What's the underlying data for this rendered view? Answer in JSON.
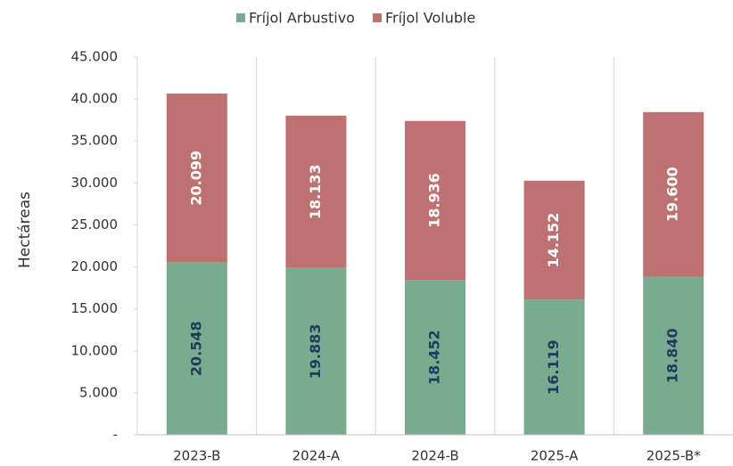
{
  "chart_data": {
    "type": "stacked_bar",
    "categories": [
      "2023-B",
      "2024-A",
      "2024-B",
      "2025-A",
      "2025-B*"
    ],
    "series": [
      {
        "name": "Fríjol Arbustivo",
        "color": "#7aab8f",
        "label_color": "#1f3c5e",
        "values": [
          20548,
          19883,
          18452,
          16119,
          18840
        ],
        "value_labels": [
          "20.548",
          "19.883",
          "18.452",
          "16.119",
          "18.840"
        ]
      },
      {
        "name": "Fríjol Voluble",
        "color": "#be7171",
        "label_color": "#ffffff",
        "values": [
          20099,
          18133,
          18936,
          14152,
          19600
        ],
        "value_labels": [
          "20.099",
          "18.133",
          "18.936",
          "14.152",
          "19.600"
        ]
      }
    ],
    "ylabel": "Hectáreas",
    "ylim": [
      0,
      45000
    ],
    "yticks": [
      {
        "value": 0,
        "label": "-"
      },
      {
        "value": 5000,
        "label": "5.000"
      },
      {
        "value": 10000,
        "label": "10.000"
      },
      {
        "value": 15000,
        "label": "15.000"
      },
      {
        "value": 20000,
        "label": "20.000"
      },
      {
        "value": 25000,
        "label": "25.000"
      },
      {
        "value": 30000,
        "label": "30.000"
      },
      {
        "value": 35000,
        "label": "35.000"
      },
      {
        "value": 40000,
        "label": "40.000"
      },
      {
        "value": 45000,
        "label": "45.000"
      }
    ],
    "legend": "top"
  }
}
